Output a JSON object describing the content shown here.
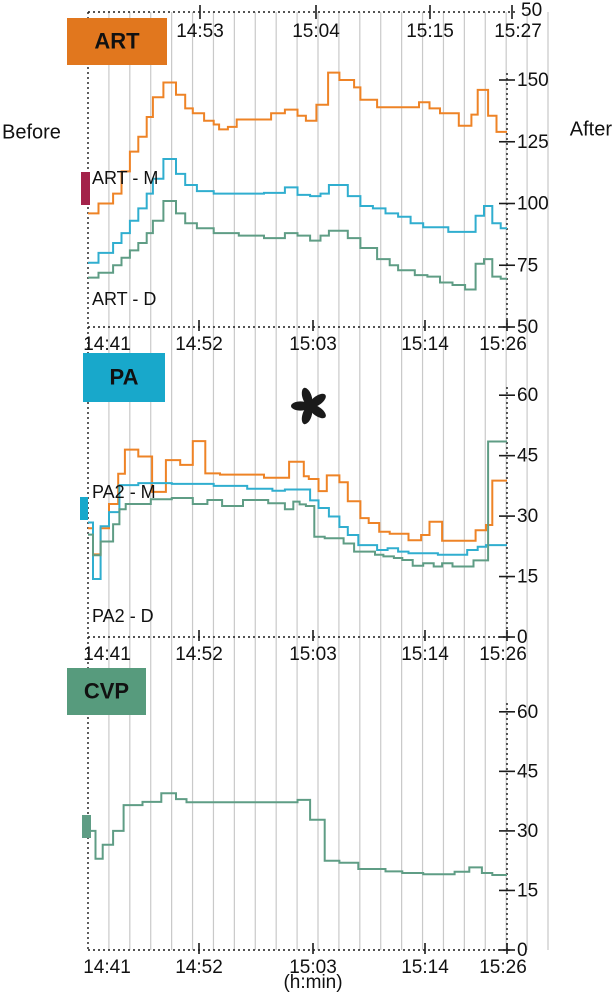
{
  "figure": {
    "before_label": "Before",
    "after_label": "After",
    "time_unit_label": "(h:min)",
    "top_axis": {
      "tick_labels": [
        "14:53",
        "15:04",
        "15:15",
        "15:27"
      ],
      "right_end_value": "50"
    },
    "bottom_axis_tick_labels": [
      "14:41",
      "14:52",
      "15:03",
      "15:14",
      "15:26"
    ],
    "colors": {
      "grid": "#c9c9c9",
      "axis": "#1a1a1a",
      "text": "#111111",
      "orange_curve": "#ee8326",
      "cyan_curve": "#30aecf",
      "green_curve": "#5f9d85",
      "art_box": "#e1771e",
      "pa_box": "#18a8cb",
      "cvp_box": "#579b7d",
      "art_marker": "#a3224a",
      "pa_marker": "#18a8cb",
      "cvp_marker": "#5f9d85",
      "box_text": "#ffffff"
    }
  },
  "chart_data": [
    {
      "panel": "ART",
      "type": "line",
      "line_style": "step",
      "label": "ART",
      "label_color": "#e1771e",
      "marker_color": "#a3224a",
      "grid": true,
      "y_axis": {
        "ticks": [
          150,
          125,
          100,
          75,
          50
        ],
        "min": 50,
        "max": 175,
        "side": "right"
      },
      "x_axis": {
        "tick_labels": [
          "14:41",
          "14:52",
          "15:03",
          "15:14",
          "15:26"
        ]
      },
      "series": [
        {
          "name": "art-upper",
          "inline_label": "",
          "color": "#ee8326",
          "points": [
            [
              0,
              96
            ],
            [
              0.025,
              100
            ],
            [
              0.06,
              104
            ],
            [
              0.08,
              113
            ],
            [
              0.1,
              121
            ],
            [
              0.12,
              127
            ],
            [
              0.14,
              135
            ],
            [
              0.155,
              143
            ],
            [
              0.18,
              149
            ],
            [
              0.21,
              144
            ],
            [
              0.232,
              138.5
            ],
            [
              0.25,
              136.5
            ],
            [
              0.277,
              133.5
            ],
            [
              0.3,
              132
            ],
            [
              0.313,
              130
            ],
            [
              0.334,
              131
            ],
            [
              0.355,
              134
            ],
            [
              0.437,
              136.5
            ],
            [
              0.47,
              138
            ],
            [
              0.5,
              135.5
            ],
            [
              0.52,
              133.5
            ],
            [
              0.545,
              140
            ],
            [
              0.573,
              153
            ],
            [
              0.6,
              150
            ],
            [
              0.635,
              147
            ],
            [
              0.65,
              142
            ],
            [
              0.69,
              139
            ],
            [
              0.79,
              141
            ],
            [
              0.815,
              138.5
            ],
            [
              0.84,
              136.5
            ],
            [
              0.885,
              131.5
            ],
            [
              0.915,
              136
            ],
            [
              0.93,
              146
            ],
            [
              0.955,
              135.5
            ],
            [
              0.975,
              129
            ]
          ]
        },
        {
          "name": "art-middle",
          "inline_label": "ART - M",
          "color": "#30aecf",
          "points": [
            [
              0,
              76
            ],
            [
              0.025,
              80
            ],
            [
              0.06,
              84
            ],
            [
              0.08,
              88
            ],
            [
              0.1,
              93
            ],
            [
              0.12,
              98
            ],
            [
              0.14,
              104
            ],
            [
              0.155,
              110
            ],
            [
              0.18,
              118
            ],
            [
              0.21,
              112
            ],
            [
              0.232,
              107.5
            ],
            [
              0.26,
              105
            ],
            [
              0.3,
              104
            ],
            [
              0.42,
              104.3
            ],
            [
              0.47,
              106.5
            ],
            [
              0.5,
              103.5
            ],
            [
              0.53,
              103
            ],
            [
              0.555,
              104
            ],
            [
              0.575,
              107.5
            ],
            [
              0.62,
              103
            ],
            [
              0.65,
              99
            ],
            [
              0.68,
              98
            ],
            [
              0.71,
              96
            ],
            [
              0.74,
              94.6
            ],
            [
              0.77,
              92
            ],
            [
              0.8,
              90.4
            ],
            [
              0.86,
              88.5
            ],
            [
              0.925,
              95
            ],
            [
              0.945,
              99
            ],
            [
              0.965,
              92
            ],
            [
              0.985,
              90
            ]
          ]
        },
        {
          "name": "art-lower",
          "inline_label": "ART - D",
          "color": "#5f9d85",
          "points": [
            [
              0,
              70
            ],
            [
              0.025,
              72
            ],
            [
              0.06,
              75
            ],
            [
              0.08,
              78
            ],
            [
              0.1,
              81
            ],
            [
              0.12,
              84
            ],
            [
              0.14,
              88
            ],
            [
              0.155,
              93
            ],
            [
              0.18,
              101
            ],
            [
              0.21,
              96
            ],
            [
              0.232,
              92
            ],
            [
              0.26,
              90
            ],
            [
              0.3,
              88
            ],
            [
              0.36,
              87
            ],
            [
              0.42,
              86
            ],
            [
              0.47,
              88
            ],
            [
              0.5,
              87
            ],
            [
              0.53,
              85
            ],
            [
              0.555,
              87
            ],
            [
              0.575,
              89
            ],
            [
              0.62,
              86
            ],
            [
              0.65,
              82
            ],
            [
              0.69,
              77.5
            ],
            [
              0.72,
              75
            ],
            [
              0.74,
              73
            ],
            [
              0.78,
              71
            ],
            [
              0.81,
              70.4
            ],
            [
              0.84,
              68
            ],
            [
              0.87,
              67
            ],
            [
              0.9,
              65.2
            ],
            [
              0.925,
              75.6
            ],
            [
              0.945,
              77.5
            ],
            [
              0.965,
              70.4
            ],
            [
              0.985,
              69.5
            ]
          ]
        }
      ]
    },
    {
      "panel": "PA",
      "type": "line",
      "line_style": "step",
      "label": "PA",
      "label_color": "#18a8cb",
      "marker_color": "#18a8cb",
      "grid": true,
      "annotation": {
        "symbol": "asterisk"
      },
      "y_axis": {
        "ticks": [
          60,
          45,
          30,
          15,
          0
        ],
        "min": 0,
        "max": 70,
        "side": "right"
      },
      "x_axis": {
        "tick_labels": [
          "14:41",
          "14:52",
          "15:03",
          "15:14",
          "15:26"
        ]
      },
      "series": [
        {
          "name": "pa-upper",
          "inline_label": "",
          "color": "#ee8326",
          "points": [
            [
              0,
              27
            ],
            [
              0.012,
              20.5
            ],
            [
              0.03,
              27
            ],
            [
              0.05,
              33
            ],
            [
              0.072,
              40.5
            ],
            [
              0.088,
              46.5
            ],
            [
              0.12,
              44.8
            ],
            [
              0.153,
              36
            ],
            [
              0.186,
              43.9
            ],
            [
              0.22,
              42.7
            ],
            [
              0.25,
              48.6
            ],
            [
              0.28,
              40.6
            ],
            [
              0.315,
              40.3
            ],
            [
              0.42,
              39.5
            ],
            [
              0.48,
              43.5
            ],
            [
              0.515,
              39.9
            ],
            [
              0.527,
              39.2
            ],
            [
              0.55,
              36.2
            ],
            [
              0.57,
              40.1
            ],
            [
              0.6,
              38.4
            ],
            [
              0.62,
              33.7
            ],
            [
              0.65,
              29.5
            ],
            [
              0.67,
              28.3
            ],
            [
              0.695,
              26.1
            ],
            [
              0.72,
              25.6
            ],
            [
              0.765,
              24
            ],
            [
              0.795,
              25.3
            ],
            [
              0.815,
              28.6
            ],
            [
              0.845,
              23.9
            ],
            [
              0.925,
              26.5
            ],
            [
              0.95,
              27.8
            ],
            [
              0.965,
              38.8
            ]
          ]
        },
        {
          "name": "pa-middle",
          "inline_label": "PA2 - M",
          "color": "#30aecf",
          "points": [
            [
              0,
              28.4
            ],
            [
              0.012,
              14.4
            ],
            [
              0.03,
              27.5
            ],
            [
              0.05,
              31
            ],
            [
              0.075,
              37.7
            ],
            [
              0.12,
              38.2
            ],
            [
              0.2,
              38
            ],
            [
              0.3,
              37.5
            ],
            [
              0.38,
              36.8
            ],
            [
              0.44,
              36.3
            ],
            [
              0.47,
              36.6
            ],
            [
              0.53,
              33.9
            ],
            [
              0.55,
              32
            ],
            [
              0.575,
              29.9
            ],
            [
              0.6,
              27.3
            ],
            [
              0.62,
              25.3
            ],
            [
              0.645,
              22.8
            ],
            [
              0.69,
              21.6
            ],
            [
              0.715,
              22
            ],
            [
              0.74,
              21.2
            ],
            [
              0.765,
              20.8
            ],
            [
              0.835,
              20.4
            ],
            [
              0.905,
              21.6
            ],
            [
              0.93,
              22.4
            ],
            [
              0.95,
              22.8
            ]
          ]
        },
        {
          "name": "pa-lower",
          "inline_label": "PA2 - D",
          "color": "#5f9d85",
          "points": [
            [
              0,
              25.4
            ],
            [
              0.012,
              20.3
            ],
            [
              0.03,
              23.7
            ],
            [
              0.06,
              28
            ],
            [
              0.075,
              31.7
            ],
            [
              0.09,
              33
            ],
            [
              0.15,
              34.2
            ],
            [
              0.2,
              34.5
            ],
            [
              0.25,
              33
            ],
            [
              0.285,
              34
            ],
            [
              0.32,
              32.5
            ],
            [
              0.37,
              34
            ],
            [
              0.43,
              33.2
            ],
            [
              0.47,
              31.7
            ],
            [
              0.49,
              33.6
            ],
            [
              0.505,
              32.9
            ],
            [
              0.52,
              32.5
            ],
            [
              0.54,
              24.9
            ],
            [
              0.565,
              24.5
            ],
            [
              0.61,
              23.2
            ],
            [
              0.635,
              21.2
            ],
            [
              0.685,
              20.4
            ],
            [
              0.705,
              20
            ],
            [
              0.73,
              19.6
            ],
            [
              0.75,
              19.1
            ],
            [
              0.775,
              17.7
            ],
            [
              0.8,
              18.3
            ],
            [
              0.825,
              17.5
            ],
            [
              0.845,
              18.3
            ],
            [
              0.87,
              17.5
            ],
            [
              0.92,
              19
            ],
            [
              0.955,
              48.5
            ]
          ]
        }
      ]
    },
    {
      "panel": "CVP",
      "type": "line",
      "line_style": "step",
      "label": "CVP",
      "label_color": "#579b7d",
      "marker_color": "#5f9d85",
      "grid": true,
      "y_axis": {
        "ticks": [
          60,
          45,
          30,
          15,
          0
        ],
        "min": 0,
        "max": 70,
        "side": "right"
      },
      "x_axis": {
        "tick_labels": [
          "14:41",
          "14:52",
          "15:03",
          "15:14",
          "15:26"
        ]
      },
      "series": [
        {
          "name": "cvp",
          "inline_label": "",
          "color": "#5f9d85",
          "points": [
            [
              0,
              30
            ],
            [
              0.018,
              23
            ],
            [
              0.035,
              26.5
            ],
            [
              0.06,
              30
            ],
            [
              0.085,
              36.5
            ],
            [
              0.13,
              37.3
            ],
            [
              0.175,
              39.5
            ],
            [
              0.21,
              38
            ],
            [
              0.235,
              37.2
            ],
            [
              0.5,
              37.8
            ],
            [
              0.53,
              32.8
            ],
            [
              0.565,
              22.5
            ],
            [
              0.6,
              22
            ],
            [
              0.645,
              20.4
            ],
            [
              0.71,
              19.8
            ],
            [
              0.75,
              19.4
            ],
            [
              0.8,
              19.1
            ],
            [
              0.875,
              19.7
            ],
            [
              0.91,
              20.8
            ],
            [
              0.94,
              19.4
            ],
            [
              0.965,
              18.9
            ]
          ]
        }
      ]
    }
  ]
}
